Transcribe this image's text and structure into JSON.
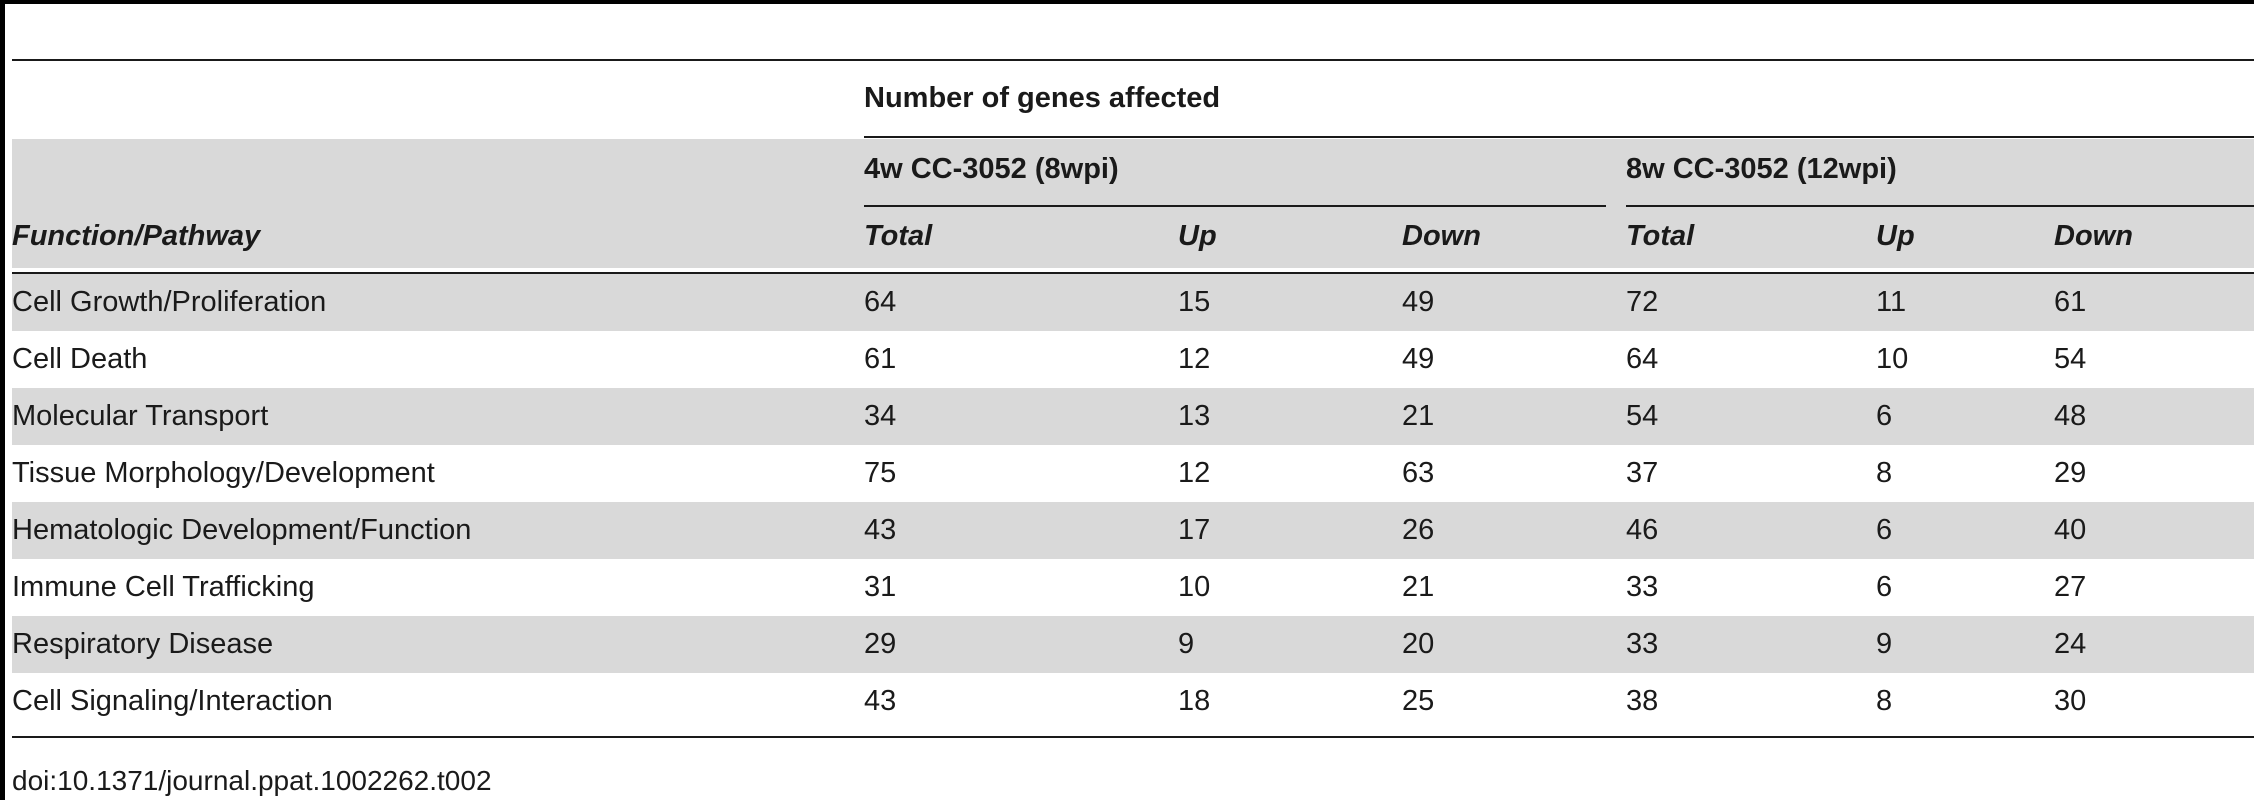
{
  "header": {
    "group_title": "Number of genes affected",
    "group1": "4w CC-3052 (8wpi)",
    "group2": "8w CC-3052 (12wpi)",
    "columns": [
      "Function/Pathway",
      "Total",
      "Up",
      "Down",
      "Total",
      "Up",
      "Down"
    ]
  },
  "rows": [
    [
      "Cell Growth/Proliferation",
      "64",
      "15",
      "49",
      "72",
      "11",
      "61"
    ],
    [
      "Cell Death",
      "61",
      "12",
      "49",
      "64",
      "10",
      "54"
    ],
    [
      "Molecular Transport",
      "34",
      "13",
      "21",
      "54",
      "6",
      "48"
    ],
    [
      "Tissue Morphology/Development",
      "75",
      "12",
      "63",
      "37",
      "8",
      "29"
    ],
    [
      "Hematologic Development/Function",
      "43",
      "17",
      "26",
      "46",
      "6",
      "40"
    ],
    [
      "Immune Cell Trafficking",
      "31",
      "10",
      "21",
      "33",
      "6",
      "27"
    ],
    [
      "Respiratory Disease",
      "29",
      "9",
      "20",
      "33",
      "9",
      "24"
    ],
    [
      "Cell Signaling/Interaction",
      "43",
      "18",
      "25",
      "38",
      "8",
      "30"
    ]
  ],
  "footer": {
    "doi": "doi:10.1371/journal.ppat.1002262.t002"
  },
  "colors": {
    "band": "#d9d9d9",
    "rule": "#1a1a1a"
  }
}
